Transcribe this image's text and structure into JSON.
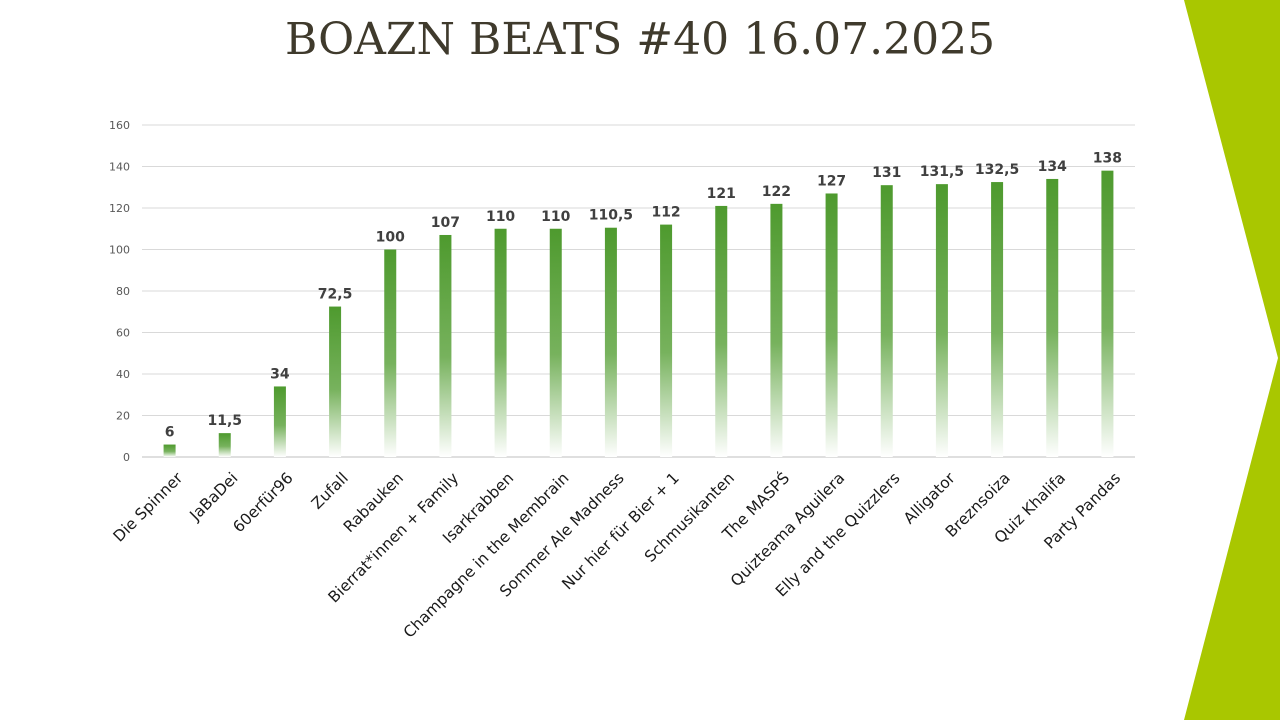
{
  "slide": {
    "title": "BOAZN BEATS #40 16.07.2025",
    "accent_color": "#a9c700"
  },
  "chart_data": {
    "type": "bar",
    "title": "BOAZN BEATS #40 16.07.2025",
    "xlabel": "",
    "ylabel": "",
    "ylim": [
      0,
      160
    ],
    "yticks": [
      0,
      20,
      40,
      60,
      80,
      100,
      120,
      140,
      160
    ],
    "grid": true,
    "legend": "none",
    "bar_color": "#4e9a2e",
    "categories": [
      "Die Spinner",
      "JaBaDei",
      "60erfür96",
      "Zufall",
      "Rabauken",
      "Bierrat*innen + Family",
      "Isarkrabben",
      "Champagne in the Membrain",
      "Sommer Ale Madness",
      "Nur hier für Bier + 1",
      "Schmusikanten",
      "The MASPŚ",
      "Quizteama Aguilera",
      "Elly and the Quizzlers",
      "Alligator",
      "Breznsoiza",
      "Quiz Khalifa",
      "Party Pandas"
    ],
    "values": [
      6,
      11.5,
      34,
      72.5,
      100,
      107,
      110,
      110,
      110.5,
      112,
      121,
      122,
      127,
      131,
      131.5,
      132.5,
      134,
      138
    ],
    "value_labels": [
      "6",
      "11,5",
      "34",
      "72,5",
      "100",
      "107",
      "110",
      "110",
      "110,5",
      "112",
      "121",
      "122",
      "127",
      "131",
      "131,5",
      "132,5",
      "134",
      "138"
    ]
  }
}
